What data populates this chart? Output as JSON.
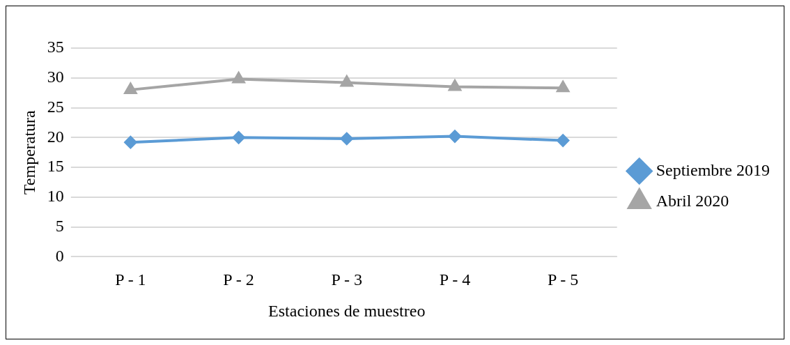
{
  "chart_data": {
    "type": "line",
    "xlabel": "Estaciones de muestreo",
    "ylabel": "Temperatura",
    "categories": [
      "P - 1",
      "P - 2",
      "P - 3",
      "P - 4",
      "P - 5"
    ],
    "series": [
      {
        "name": "Septiembre 2019",
        "color": "#5b9bd5",
        "marker": "diamond",
        "values": [
          19.2,
          20.0,
          19.8,
          20.2,
          19.5
        ]
      },
      {
        "name": "Abril 2020",
        "color": "#a5a5a5",
        "marker": "triangle",
        "values": [
          28.0,
          29.8,
          29.2,
          28.5,
          28.3
        ]
      }
    ],
    "ylim": [
      0,
      35
    ],
    "yticks": [
      0,
      5,
      10,
      15,
      20,
      25,
      30,
      35
    ],
    "grid": "y",
    "legend": "right"
  }
}
